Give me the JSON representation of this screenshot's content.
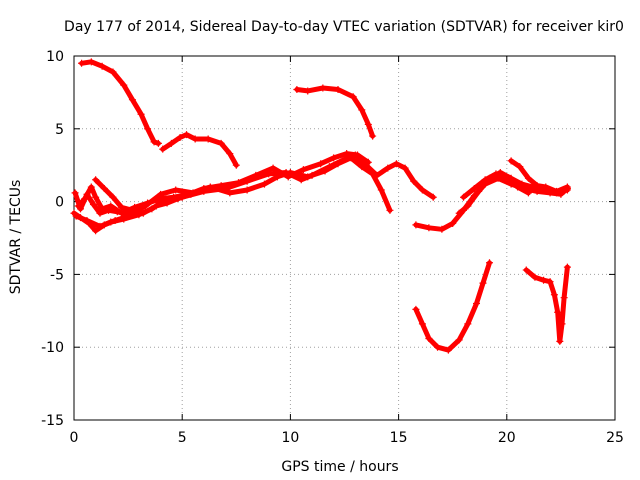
{
  "chart_data": {
    "type": "scatter",
    "title": "Day 177 of 2014, Sidereal Day-to-day VTEC variation (SDTVAR) for receiver kir0",
    "xlabel": "GPS time / hours",
    "ylabel": "SDTVAR / TECUs",
    "xlim": [
      0,
      25
    ],
    "ylim": [
      -15,
      10
    ],
    "xticks": [
      "0",
      "5",
      "10",
      "15",
      "20",
      "25"
    ],
    "yticks": [
      "-15",
      "-10",
      "-5",
      "0",
      "5",
      "10"
    ],
    "grid": true,
    "marker": "+",
    "color": "#ff0000",
    "series": [
      {
        "name": "s1",
        "points": [
          [
            0.35,
            9.5
          ],
          [
            0.8,
            9.6
          ],
          [
            1.3,
            9.3
          ],
          [
            1.8,
            8.9
          ],
          [
            2.3,
            8.0
          ],
          [
            2.7,
            7.0
          ],
          [
            3.1,
            6.0
          ],
          [
            3.4,
            5.0
          ],
          [
            3.7,
            4.1
          ],
          [
            3.9,
            4.0
          ]
        ]
      },
      {
        "name": "s2",
        "points": [
          [
            4.1,
            3.6
          ],
          [
            4.5,
            4.0
          ],
          [
            4.9,
            4.4
          ],
          [
            5.2,
            4.6
          ],
          [
            5.6,
            4.3
          ],
          [
            6.2,
            4.3
          ],
          [
            6.8,
            4.0
          ],
          [
            7.2,
            3.3
          ],
          [
            7.5,
            2.5
          ]
        ]
      },
      {
        "name": "s3",
        "points": [
          [
            10.3,
            7.7
          ],
          [
            10.8,
            7.6
          ],
          [
            11.5,
            7.8
          ],
          [
            12.2,
            7.7
          ],
          [
            12.9,
            7.2
          ],
          [
            13.3,
            6.3
          ],
          [
            13.6,
            5.3
          ],
          [
            13.8,
            4.5
          ]
        ]
      },
      {
        "name": "s4",
        "points": [
          [
            0.1,
            -1.0
          ],
          [
            0.6,
            -1.3
          ],
          [
            1.2,
            -1.7
          ],
          [
            1.7,
            -1.4
          ],
          [
            2.3,
            -1.2
          ],
          [
            3.0,
            -0.9
          ],
          [
            3.6,
            -0.5
          ],
          [
            4.2,
            0.1
          ],
          [
            5.0,
            0.3
          ],
          [
            6.0,
            0.7
          ],
          [
            7.0,
            0.9
          ],
          [
            8.0,
            1.4
          ],
          [
            9.0,
            1.9
          ],
          [
            9.8,
            2.0
          ],
          [
            10.5,
            1.5
          ],
          [
            11.0,
            1.8
          ],
          [
            11.8,
            2.4
          ],
          [
            12.5,
            2.9
          ],
          [
            13.0,
            3.2
          ],
          [
            13.5,
            2.5
          ],
          [
            14.0,
            1.8
          ],
          [
            14.5,
            2.3
          ],
          [
            14.9,
            2.6
          ],
          [
            15.3,
            2.3
          ],
          [
            15.7,
            1.4
          ],
          [
            16.1,
            0.8
          ],
          [
            16.6,
            0.3
          ]
        ]
      },
      {
        "name": "s5",
        "points": [
          [
            0.05,
            0.6
          ],
          [
            0.3,
            -0.5
          ],
          [
            0.6,
            0.5
          ],
          [
            0.9,
            -0.2
          ],
          [
            1.2,
            -0.8
          ],
          [
            1.6,
            -0.6
          ],
          [
            2.0,
            -0.7
          ],
          [
            2.6,
            -0.9
          ],
          [
            3.3,
            -0.3
          ],
          [
            4.0,
            0.5
          ],
          [
            4.7,
            0.8
          ],
          [
            5.5,
            0.6
          ],
          [
            6.3,
            1.0
          ],
          [
            7.2,
            0.6
          ],
          [
            8.0,
            0.8
          ],
          [
            8.8,
            1.2
          ],
          [
            9.4,
            1.7
          ],
          [
            10.0,
            2.0
          ],
          [
            10.8,
            1.7
          ],
          [
            11.6,
            2.1
          ],
          [
            12.2,
            2.6
          ],
          [
            12.8,
            3.0
          ],
          [
            13.3,
            2.4
          ],
          [
            13.8,
            1.9
          ],
          [
            14.2,
            0.8
          ],
          [
            14.6,
            -0.6
          ]
        ]
      },
      {
        "name": "s6",
        "points": [
          [
            0.2,
            -0.3
          ],
          [
            0.5,
            0.2
          ],
          [
            0.8,
            1.0
          ],
          [
            1.0,
            0.3
          ],
          [
            1.3,
            -0.5
          ],
          [
            1.7,
            -0.3
          ],
          [
            2.2,
            -0.8
          ],
          [
            2.8,
            -0.4
          ],
          [
            3.4,
            -0.1
          ],
          [
            4.0,
            0.2
          ],
          [
            4.6,
            0.3
          ],
          [
            5.3,
            0.5
          ],
          [
            6.0,
            0.9
          ],
          [
            6.8,
            1.1
          ],
          [
            7.6,
            1.3
          ],
          [
            8.4,
            1.8
          ],
          [
            9.2,
            2.3
          ],
          [
            9.9,
            1.7
          ],
          [
            10.6,
            2.2
          ],
          [
            11.4,
            2.6
          ],
          [
            12.0,
            3.0
          ],
          [
            12.6,
            3.3
          ],
          [
            13.1,
            3.2
          ],
          [
            13.6,
            2.7
          ]
        ]
      },
      {
        "name": "s7",
        "points": [
          [
            1.0,
            1.5
          ],
          [
            1.4,
            0.9
          ],
          [
            1.8,
            0.3
          ],
          [
            2.2,
            -0.4
          ],
          [
            2.7,
            -0.6
          ],
          [
            3.2,
            -0.8
          ],
          [
            3.8,
            -0.3
          ],
          [
            4.3,
            -0.1
          ],
          [
            4.8,
            0.2
          ],
          [
            5.4,
            0.5
          ],
          [
            6.1,
            0.8
          ],
          [
            6.8,
            1.0
          ]
        ]
      },
      {
        "name": "s8",
        "points": [
          [
            0.0,
            -0.8
          ],
          [
            0.3,
            -1.1
          ],
          [
            0.7,
            -1.5
          ],
          [
            1.0,
            -2.0
          ],
          [
            1.4,
            -1.6
          ],
          [
            1.9,
            -1.3
          ],
          [
            2.5,
            -1.0
          ]
        ]
      },
      {
        "name": "s9",
        "points": [
          [
            15.8,
            -1.6
          ],
          [
            16.4,
            -1.8
          ],
          [
            17.0,
            -1.9
          ],
          [
            17.5,
            -1.5
          ],
          [
            18.0,
            -0.6
          ],
          [
            18.5,
            0.4
          ],
          [
            19.0,
            1.2
          ],
          [
            19.6,
            1.6
          ],
          [
            20.2,
            1.2
          ],
          [
            20.8,
            0.9
          ],
          [
            21.4,
            0.7
          ],
          [
            22.0,
            0.6
          ],
          [
            22.5,
            0.5
          ],
          [
            22.8,
            0.9
          ]
        ]
      },
      {
        "name": "s10",
        "points": [
          [
            17.8,
            -0.8
          ],
          [
            18.2,
            -0.3
          ],
          [
            18.7,
            0.7
          ],
          [
            19.2,
            1.6
          ],
          [
            19.7,
            2.0
          ],
          [
            20.2,
            1.6
          ],
          [
            20.7,
            1.2
          ],
          [
            21.2,
            1.0
          ],
          [
            21.8,
            0.8
          ],
          [
            22.3,
            0.6
          ],
          [
            22.8,
            0.8
          ]
        ]
      },
      {
        "name": "s11",
        "points": [
          [
            20.2,
            2.8
          ],
          [
            20.6,
            2.4
          ],
          [
            21.0,
            1.6
          ],
          [
            21.4,
            1.1
          ],
          [
            21.8,
            1.0
          ],
          [
            22.3,
            0.7
          ],
          [
            22.8,
            1.0
          ]
        ]
      },
      {
        "name": "s12",
        "points": [
          [
            18.0,
            0.3
          ],
          [
            18.5,
            0.9
          ],
          [
            19.0,
            1.5
          ],
          [
            19.5,
            1.9
          ],
          [
            20.0,
            1.6
          ],
          [
            20.5,
            1.0
          ],
          [
            21.0,
            0.6
          ]
        ]
      },
      {
        "name": "s13",
        "points": [
          [
            15.8,
            -7.4
          ],
          [
            16.1,
            -8.4
          ],
          [
            16.4,
            -9.4
          ],
          [
            16.8,
            -10.0
          ],
          [
            17.3,
            -10.2
          ],
          [
            17.8,
            -9.5
          ],
          [
            18.2,
            -8.4
          ],
          [
            18.6,
            -7.0
          ],
          [
            18.9,
            -5.6
          ],
          [
            19.2,
            -4.2
          ]
        ]
      },
      {
        "name": "s14",
        "points": [
          [
            20.9,
            -4.7
          ],
          [
            21.3,
            -5.2
          ],
          [
            21.7,
            -5.4
          ],
          [
            22.0,
            -5.5
          ],
          [
            22.2,
            -6.4
          ],
          [
            22.35,
            -7.6
          ],
          [
            22.45,
            -9.6
          ],
          [
            22.55,
            -8.4
          ],
          [
            22.65,
            -6.6
          ],
          [
            22.8,
            -4.5
          ]
        ]
      }
    ]
  }
}
